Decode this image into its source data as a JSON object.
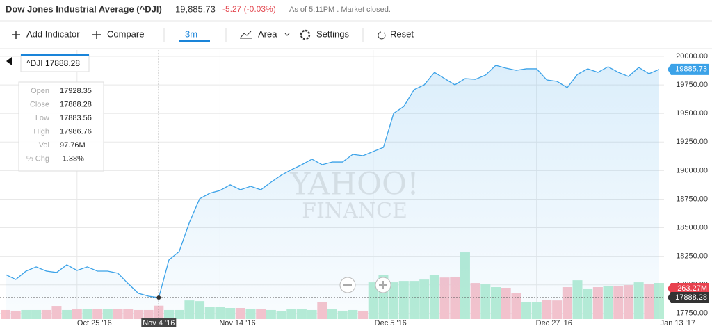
{
  "header": {
    "title": "Dow Jones Industrial Average (^DJI)",
    "price": "19,885.73",
    "change": "-5.27 (-0.03%)",
    "status": "As of 5:11PM . Market closed."
  },
  "toolbar": {
    "add_indicator": "Add Indicator",
    "compare": "Compare",
    "range": "3m",
    "chart_type": "Area",
    "settings": "Settings",
    "reset": "Reset"
  },
  "tooltip": {
    "title": "^DJI 17888.28",
    "rows": [
      [
        "Open",
        "17928.35"
      ],
      [
        "Close",
        "17888.28"
      ],
      [
        "Low",
        "17883.56"
      ],
      [
        "High",
        "17986.76"
      ],
      [
        "Vol",
        "97.76M"
      ],
      [
        "% Chg",
        "-1.38%"
      ]
    ]
  },
  "watermark": [
    "YAHOO!",
    "FINANCE"
  ],
  "chart_data": {
    "type": "area",
    "categories": [
      null,
      null,
      null,
      null,
      null,
      null,
      null,
      "Oct 25 '16",
      null,
      null,
      null,
      null,
      null,
      null,
      null,
      "Nov 4 '16",
      null,
      null,
      null,
      null,
      null,
      "Nov 14 '16",
      null,
      null,
      null,
      null,
      null,
      null,
      null,
      null,
      null,
      null,
      null,
      null,
      null,
      null,
      "Dec 5 '16",
      null,
      null,
      null,
      null,
      null,
      null,
      null,
      null,
      null,
      null,
      null,
      null,
      null,
      null,
      null,
      "Dec 27 '16",
      null,
      null,
      null,
      null,
      null,
      null,
      null,
      null,
      null,
      null,
      null,
      "Jan 13 '17"
    ],
    "series": [
      {
        "name": "^DJI",
        "color": "#3ba2e8",
        "values": [
          18090,
          18047,
          18120,
          18157,
          18120,
          18108,
          18175,
          18126,
          18157,
          18120,
          18120,
          18102,
          18011,
          17926,
          17901,
          17888.28,
          18218,
          18291,
          18546,
          18753,
          18802,
          18826,
          18875,
          18832,
          18862,
          18832,
          18899,
          18960,
          19008,
          19051,
          19100,
          19051,
          19075,
          19075,
          19142,
          19130,
          19167,
          19203,
          19501,
          19562,
          19708,
          19751,
          19860,
          19805,
          19751,
          19805,
          19799,
          19836,
          19921,
          19897,
          19878,
          19891,
          19891,
          19793,
          19781,
          19726,
          19842,
          19891,
          19860,
          19909,
          19860,
          19824,
          19903,
          19848,
          19885.73
        ]
      },
      {
        "name": "Volume",
        "axis": "y2",
        "up_color": "#b8edd5",
        "down_color": "#f8c3cc",
        "values": [
          66,
          61,
          66,
          66,
          66,
          96,
          66,
          71,
          76,
          76,
          71,
          71,
          71,
          66,
          66,
          97.76,
          66,
          66,
          136,
          131,
          86,
          86,
          81,
          81,
          76,
          76,
          66,
          56,
          76,
          76,
          66,
          126,
          71,
          61,
          66,
          61,
          268,
          324,
          268,
          278,
          278,
          288,
          324,
          303,
          309,
          486,
          263,
          253,
          233,
          228,
          192,
          126,
          126,
          142,
          136,
          233,
          283,
          223,
          233,
          238,
          243,
          248,
          268,
          253,
          263.27
        ],
        "value_labels": [
          null,
          null,
          null,
          null,
          null,
          null,
          null,
          null,
          null,
          null,
          null,
          null,
          null,
          null,
          null,
          null,
          null,
          null,
          null,
          null,
          null,
          null,
          null,
          null,
          null,
          null,
          null,
          null,
          null,
          null,
          null,
          null,
          null,
          null,
          null,
          null,
          null,
          null,
          null,
          null,
          null,
          null,
          null,
          null,
          null,
          null,
          null,
          null,
          null,
          null,
          null,
          null,
          null,
          null,
          null,
          null,
          null,
          null,
          null,
          null,
          null,
          null,
          null,
          null,
          "263.27M"
        ]
      }
    ],
    "ylim": [
      17700,
      20055
    ],
    "yticks": [
      {
        "value": 17750,
        "label": "17750.00"
      },
      {
        "value": 18000,
        "label": "18000.00"
      },
      {
        "value": 18250,
        "label": "18250.00"
      },
      {
        "value": 18500,
        "label": "18500.00"
      },
      {
        "value": 18750,
        "label": "18750.00"
      },
      {
        "value": 19000,
        "label": "19000.00"
      },
      {
        "value": 19250,
        "label": "19250.00"
      },
      {
        "value": 19500,
        "label": "19500.00"
      },
      {
        "value": 19750,
        "label": "19750.00"
      },
      {
        "value": 20000,
        "label": "20000.00"
      }
    ],
    "y2lim": [
      0,
      1960
    ],
    "grid": true,
    "crosshair_index": 15
  }
}
